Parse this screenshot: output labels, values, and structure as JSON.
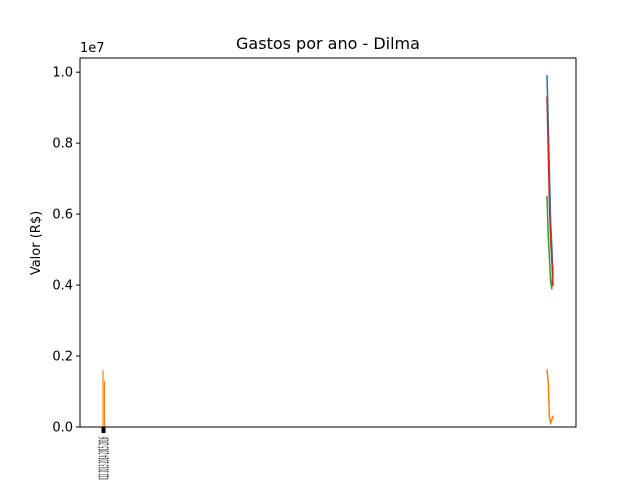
{
  "chart_data": {
    "type": "line",
    "title": "Gastos por ano - Dilma",
    "xlabel": "",
    "ylabel": "Valor (R$)",
    "y_offset_text": "1e7",
    "ylim": [
      0,
      10400000
    ],
    "yticks": [
      0,
      2000000,
      4000000,
      6000000,
      8000000,
      10000000
    ],
    "ytick_labels": [
      "0.0",
      "0.2",
      "0.4",
      "0.6",
      "0.8",
      "1.0"
    ],
    "x_tick_label_text": "2011 2012 2013 2014 2015 2016",
    "grid": false,
    "series": [
      {
        "color": "#1f77b4",
        "x": [
          2011,
          2012,
          2013,
          2014,
          2015,
          2016
        ],
        "y": [
          9900000,
          8600000,
          7200000,
          5800000,
          5100000,
          4300000
        ]
      },
      {
        "color": "#ff7f0e",
        "x": [
          2011,
          2012,
          2013,
          2014,
          2015,
          2016
        ],
        "y": [
          1600000,
          1300000,
          300000,
          100000,
          200000,
          300000
        ]
      },
      {
        "color": "#2ca02c",
        "x": [
          2011,
          2012,
          2013,
          2014,
          2015,
          2016
        ],
        "y": [
          6500000,
          5400000,
          4800000,
          4100000,
          3900000,
          4500000
        ]
      },
      {
        "color": "#d62728",
        "x": [
          2011,
          2012,
          2013,
          2014,
          2015,
          2016
        ],
        "y": [
          9300000,
          7800000,
          6300000,
          5300000,
          4700000,
          4000000
        ]
      }
    ]
  }
}
